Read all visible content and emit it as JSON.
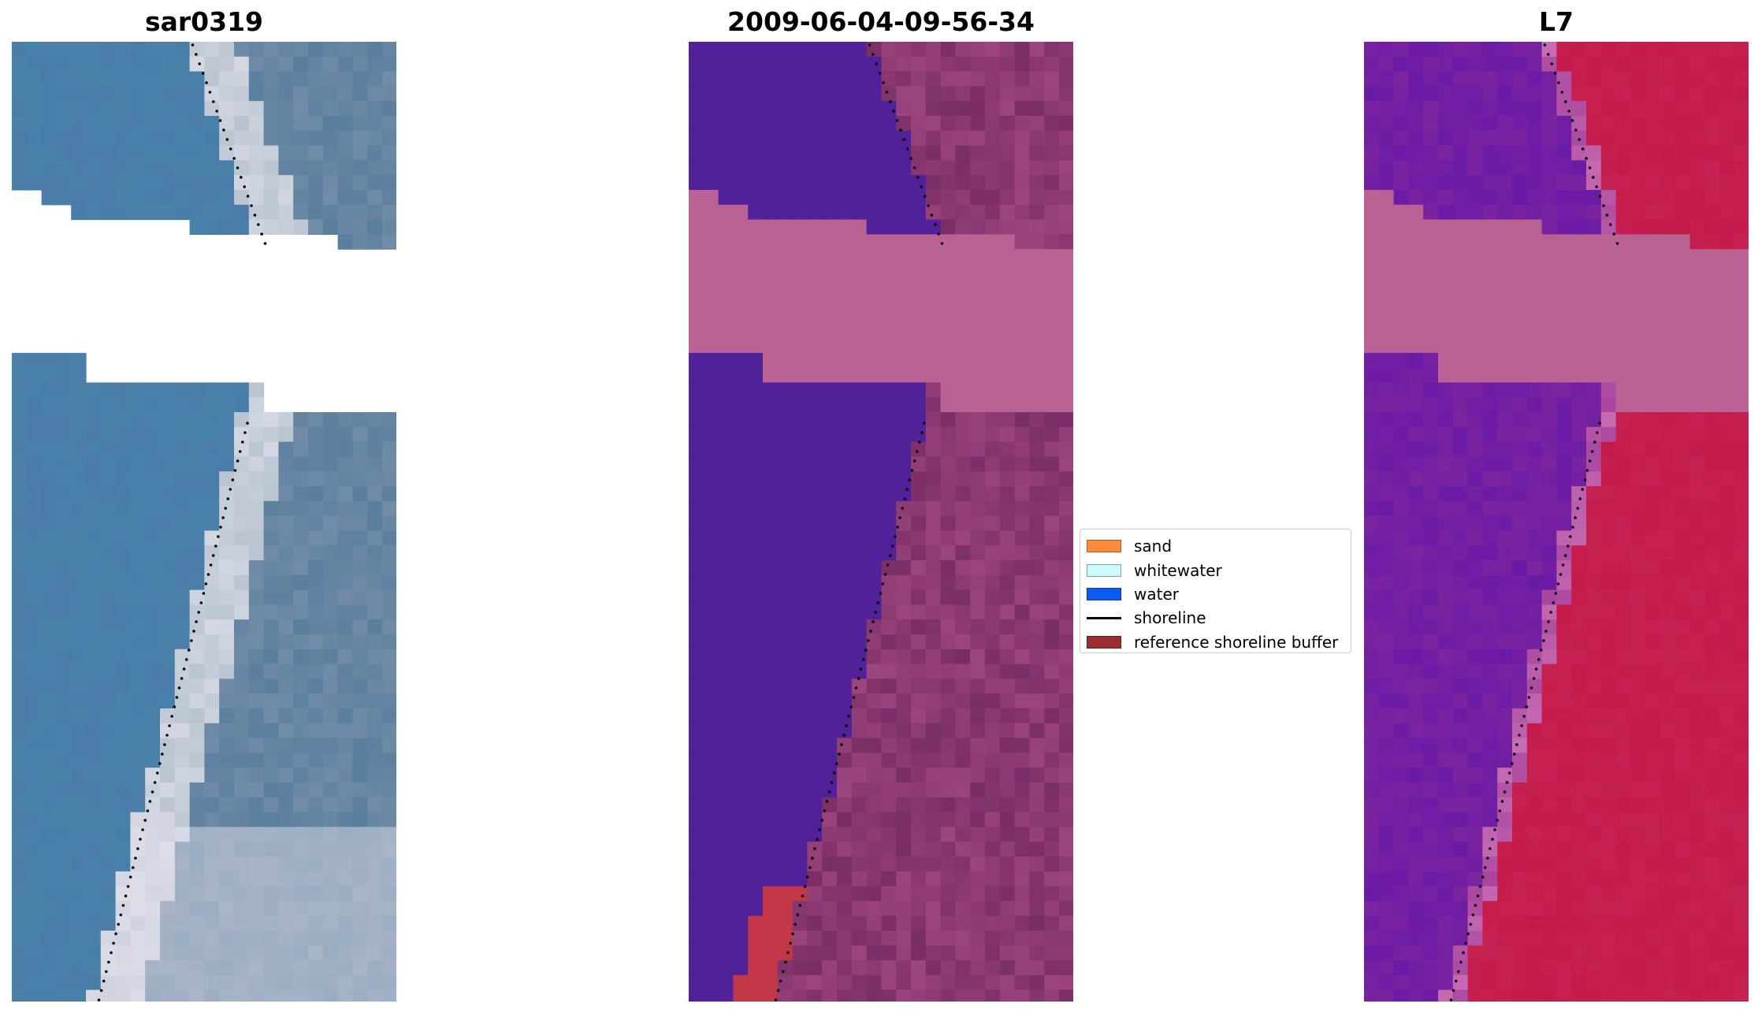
{
  "panels": [
    {
      "title": "sar0319"
    },
    {
      "title": "2009-06-04-09-56-34"
    },
    {
      "title": "L7"
    }
  ],
  "legend": {
    "placement": "center",
    "items": [
      {
        "label": "sand",
        "color": "#ff8c3a",
        "kind": "patch"
      },
      {
        "label": "whitewater",
        "color": "#c9fbff",
        "kind": "patch"
      },
      {
        "label": "water",
        "color": "#0a5cf5",
        "kind": "patch"
      },
      {
        "label": "shoreline",
        "color": "#000000",
        "kind": "line"
      },
      {
        "label": "reference shoreline buffer",
        "color": "#9b2d30",
        "kind": "patch"
      }
    ]
  },
  "colors": {
    "rgb_water": "#4a7ca8",
    "rgb_shore": "#b9c4d0",
    "rgb_land": "#5a7f9e",
    "class_water": "#51219a",
    "class_land": "#7a2e66",
    "class_nodata": "#bb6294",
    "class_buffer": "#c23848",
    "mndwi_water": "#7b24a0",
    "mndwi_land": "#c41a4a",
    "mndwi_nodata": "#bb6294"
  }
}
